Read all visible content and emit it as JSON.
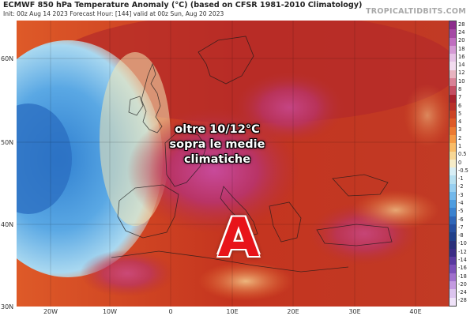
{
  "header": {
    "title": "ECMWF 850 hPa Temperature Anomaly (°C) (based on CFSR 1981-2010 Climatology)",
    "subtitle": "Init: 00z Aug 14 2023   Forecast Hour: [144]   valid at 00z Sun, Aug 20 2023",
    "brand": "TROPICALTIDBITS.COM"
  },
  "map": {
    "lat_labels": [
      "60N",
      "50N",
      "40N",
      "30N"
    ],
    "lon_labels": [
      "20W",
      "10W",
      "0",
      "10E",
      "20E",
      "30E",
      "40E"
    ],
    "overlay_text": [
      "oltre 10/12°C",
      "sopra le medie",
      "climatiche"
    ],
    "pressure_symbol": "A",
    "symbol_color": "#e8141a"
  },
  "colorbar": {
    "labels": [
      "28",
      "24",
      "20",
      "18",
      "16",
      "14",
      "12",
      "10",
      "8",
      "7",
      "6",
      "5",
      "4",
      "3",
      "2",
      "1",
      "0.5",
      "0",
      "-0.5",
      "-1",
      "-2",
      "-3",
      "-4",
      "-5",
      "-6",
      "-7",
      "-8",
      "-10",
      "-12",
      "-14",
      "-16",
      "-18",
      "-20",
      "-24",
      "-28"
    ],
    "colors": [
      "#8c2d8c",
      "#a54aa5",
      "#c06ec0",
      "#d59ad5",
      "#e6c2e6",
      "#f2dcef",
      "#e8b3c0",
      "#d98196",
      "#c44d62",
      "#a8222e",
      "#b8302a",
      "#cc4325",
      "#de5a28",
      "#ec7a32",
      "#f59a45",
      "#f8bc68",
      "#f7d796",
      "#f6ecc8",
      "#d8eef5",
      "#b8e0f0",
      "#98cff0",
      "#73b8ea",
      "#4f9de0",
      "#3b82cf",
      "#2f66b8",
      "#274fa0",
      "#21408a",
      "#2a2f7a",
      "#3b2c86",
      "#5a3aa0",
      "#7c50b8",
      "#a070cc",
      "#c39ae0",
      "#dcc4ee",
      "#efe2f8"
    ]
  }
}
